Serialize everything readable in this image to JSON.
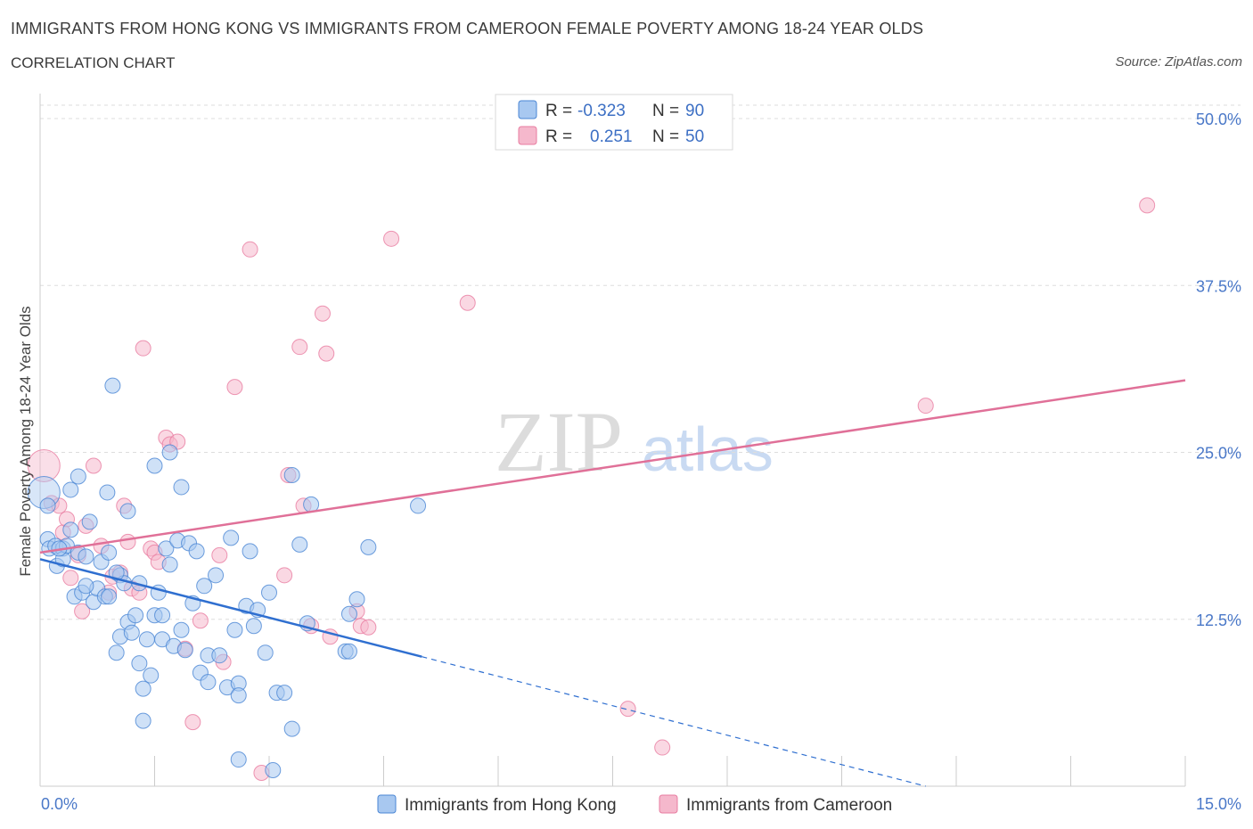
{
  "header": {
    "title": "IMMIGRANTS FROM HONG KONG VS IMMIGRANTS FROM CAMEROON FEMALE POVERTY AMONG 18-24 YEAR OLDS",
    "subtitle": "CORRELATION CHART",
    "source": "Source: ZipAtlas.com"
  },
  "watermark": {
    "zip": "ZIP",
    "atlas": "atlas"
  },
  "legend": {
    "r_label": "R =",
    "n_label": "N =",
    "rows": [
      {
        "r": "-0.323",
        "n": "90"
      },
      {
        "r": "0.251",
        "n": "50"
      }
    ]
  },
  "colors": {
    "hong_kong_fill": "#a8c8f0",
    "hong_kong_stroke": "#4a86d4",
    "hong_kong_line": "#2f6fd0",
    "cameroon_fill": "#f5b8cc",
    "cameroon_stroke": "#e87ca0",
    "cameroon_line": "#e07098",
    "grid": "#dddddd",
    "tick_label": "#4a78c8"
  },
  "chart_data": {
    "type": "scatter",
    "title": "IMMIGRANTS FROM HONG KONG VS IMMIGRANTS FROM CAMEROON FEMALE POVERTY AMONG 18-24 YEAR OLDS",
    "ylabel": "Female Poverty Among 18-24 Year Olds",
    "xlabel": "",
    "xlim": [
      0,
      15
    ],
    "ylim": [
      0,
      50
    ],
    "x_tick_labels": [
      "0.0%",
      "15.0%"
    ],
    "y_ticks": [
      12.5,
      25.0,
      37.5,
      50.0
    ],
    "y_tick_labels": [
      "12.5%",
      "25.0%",
      "37.5%",
      "50.0%"
    ],
    "grid": true,
    "legend_position": "top-center",
    "series": [
      {
        "name": "Immigrants from Hong Kong",
        "R": -0.323,
        "N": 90,
        "trend": {
          "x": [
            0,
            5
          ],
          "y": [
            17.0,
            9.7
          ],
          "dashed_to": [
            11.6,
            0.0
          ]
        },
        "points": [
          [
            0.05,
            22.0
          ],
          [
            0.1,
            21.0
          ],
          [
            0.1,
            18.5
          ],
          [
            0.12,
            17.8
          ],
          [
            0.2,
            18.0
          ],
          [
            0.22,
            16.5
          ],
          [
            0.3,
            17.8
          ],
          [
            0.3,
            17.0
          ],
          [
            0.35,
            18.0
          ],
          [
            0.4,
            19.2
          ],
          [
            0.4,
            22.2
          ],
          [
            0.45,
            14.2
          ],
          [
            0.5,
            23.2
          ],
          [
            0.5,
            17.5
          ],
          [
            0.55,
            14.5
          ],
          [
            0.6,
            17.2
          ],
          [
            0.65,
            19.8
          ],
          [
            0.7,
            13.8
          ],
          [
            0.75,
            14.8
          ],
          [
            0.8,
            16.8
          ],
          [
            0.85,
            14.2
          ],
          [
            0.88,
            22.0
          ],
          [
            0.9,
            14.2
          ],
          [
            0.9,
            17.5
          ],
          [
            0.95,
            30.0
          ],
          [
            1.0,
            10.0
          ],
          [
            1.05,
            11.2
          ],
          [
            1.05,
            15.8
          ],
          [
            1.1,
            15.2
          ],
          [
            1.15,
            12.3
          ],
          [
            1.15,
            20.6
          ],
          [
            1.2,
            11.5
          ],
          [
            1.25,
            12.8
          ],
          [
            1.3,
            9.2
          ],
          [
            1.3,
            15.2
          ],
          [
            1.35,
            7.3
          ],
          [
            1.35,
            4.9
          ],
          [
            1.4,
            11.0
          ],
          [
            1.45,
            8.3
          ],
          [
            1.5,
            12.8
          ],
          [
            1.5,
            24.0
          ],
          [
            1.55,
            14.5
          ],
          [
            1.6,
            12.8
          ],
          [
            1.6,
            11.0
          ],
          [
            1.65,
            17.8
          ],
          [
            1.7,
            25.0
          ],
          [
            1.7,
            16.6
          ],
          [
            1.75,
            10.5
          ],
          [
            1.8,
            18.4
          ],
          [
            1.85,
            22.4
          ],
          [
            1.85,
            11.7
          ],
          [
            1.9,
            10.2
          ],
          [
            1.95,
            18.2
          ],
          [
            2.0,
            13.7
          ],
          [
            2.05,
            17.6
          ],
          [
            2.1,
            8.5
          ],
          [
            2.15,
            15.0
          ],
          [
            2.2,
            9.8
          ],
          [
            2.2,
            7.8
          ],
          [
            2.3,
            15.8
          ],
          [
            2.35,
            9.8
          ],
          [
            2.45,
            7.4
          ],
          [
            2.5,
            18.6
          ],
          [
            2.55,
            11.7
          ],
          [
            2.6,
            7.7
          ],
          [
            2.6,
            6.8
          ],
          [
            2.6,
            2.0
          ],
          [
            2.7,
            13.5
          ],
          [
            2.75,
            17.6
          ],
          [
            2.8,
            12.0
          ],
          [
            2.85,
            13.2
          ],
          [
            2.95,
            10.0
          ],
          [
            3.0,
            14.5
          ],
          [
            3.05,
            1.2
          ],
          [
            3.1,
            7.0
          ],
          [
            3.2,
            7.0
          ],
          [
            3.3,
            4.3
          ],
          [
            3.3,
            23.3
          ],
          [
            3.4,
            18.1
          ],
          [
            3.5,
            12.2
          ],
          [
            3.55,
            21.1
          ],
          [
            4.0,
            10.1
          ],
          [
            4.05,
            12.9
          ],
          [
            4.05,
            10.1
          ],
          [
            4.15,
            14.0
          ],
          [
            4.3,
            17.9
          ],
          [
            4.95,
            21.0
          ],
          [
            0.25,
            17.8
          ],
          [
            0.6,
            15.0
          ],
          [
            1.0,
            16.0
          ]
        ]
      },
      {
        "name": "Immigrants from Cameroon",
        "R": 0.251,
        "N": 50,
        "trend": {
          "x": [
            0,
            15
          ],
          "y": [
            17.5,
            30.4
          ]
        },
        "points": [
          [
            0.05,
            24.0
          ],
          [
            0.15,
            21.2
          ],
          [
            0.25,
            21.0
          ],
          [
            0.3,
            19.0
          ],
          [
            0.35,
            20.0
          ],
          [
            0.4,
            15.6
          ],
          [
            0.5,
            17.3
          ],
          [
            0.55,
            13.1
          ],
          [
            0.6,
            19.5
          ],
          [
            0.7,
            24.0
          ],
          [
            0.8,
            18.0
          ],
          [
            0.9,
            14.5
          ],
          [
            0.95,
            15.7
          ],
          [
            1.05,
            16.0
          ],
          [
            1.15,
            18.3
          ],
          [
            1.2,
            14.8
          ],
          [
            1.3,
            14.5
          ],
          [
            1.35,
            32.8
          ],
          [
            1.45,
            17.8
          ],
          [
            1.5,
            17.5
          ],
          [
            1.55,
            16.8
          ],
          [
            1.65,
            26.1
          ],
          [
            1.7,
            25.6
          ],
          [
            1.8,
            25.8
          ],
          [
            1.9,
            10.3
          ],
          [
            2.0,
            4.8
          ],
          [
            2.1,
            12.4
          ],
          [
            2.35,
            17.3
          ],
          [
            2.4,
            9.3
          ],
          [
            2.55,
            29.9
          ],
          [
            2.75,
            40.2
          ],
          [
            2.9,
            1.0
          ],
          [
            3.2,
            15.8
          ],
          [
            3.25,
            23.3
          ],
          [
            3.4,
            32.9
          ],
          [
            3.45,
            21.0
          ],
          [
            3.55,
            12.0
          ],
          [
            3.7,
            35.4
          ],
          [
            3.75,
            32.4
          ],
          [
            3.8,
            11.2
          ],
          [
            4.15,
            13.1
          ],
          [
            4.2,
            12.0
          ],
          [
            4.3,
            11.9
          ],
          [
            4.6,
            41.0
          ],
          [
            5.6,
            36.2
          ],
          [
            7.7,
            5.8
          ],
          [
            8.15,
            2.9
          ],
          [
            11.6,
            28.5
          ],
          [
            14.5,
            43.5
          ],
          [
            1.1,
            21.0
          ]
        ]
      }
    ]
  }
}
